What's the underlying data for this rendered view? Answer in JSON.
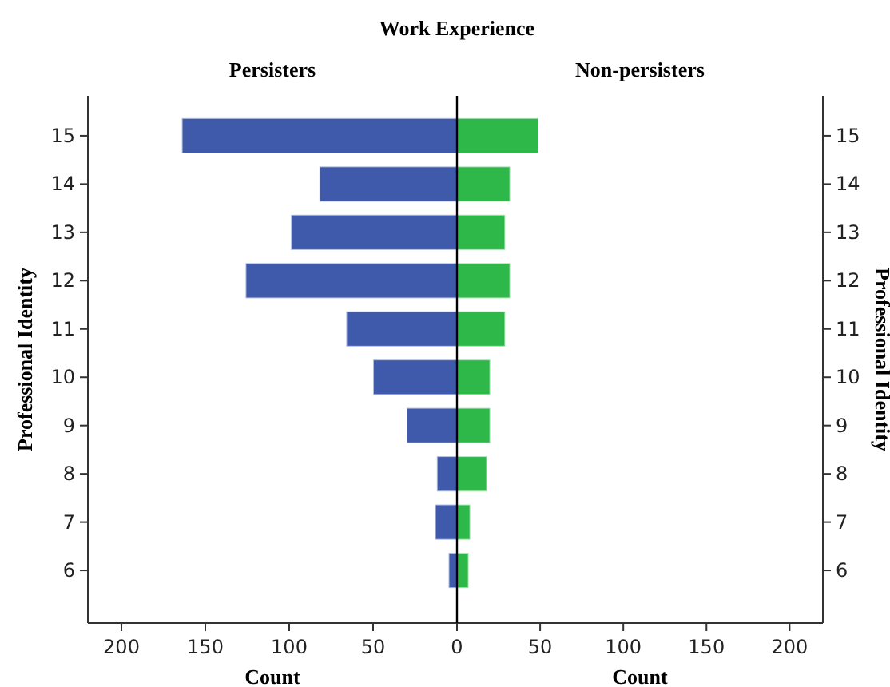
{
  "chart_data": [
    {
      "type": "bar",
      "orientation": "horizontal",
      "title": "Work Experience",
      "subtitle": "Persisters",
      "xlabel": "Count",
      "ylabel": "Professional Identity",
      "categories": [
        "15",
        "14",
        "13",
        "12",
        "11",
        "10",
        "9",
        "8",
        "7",
        "6"
      ],
      "values": [
        164,
        82,
        99,
        126,
        66,
        50,
        30,
        12,
        13,
        5
      ],
      "color": "#3f59ab",
      "xlim": [
        220,
        0
      ],
      "xticks": [
        200,
        150,
        100,
        50,
        0
      ]
    },
    {
      "type": "bar",
      "orientation": "horizontal",
      "subtitle": "Non-persisters",
      "xlabel": "Count",
      "ylabel": "Professional Identity",
      "categories": [
        "15",
        "14",
        "13",
        "12",
        "11",
        "10",
        "9",
        "8",
        "7",
        "6"
      ],
      "values": [
        49,
        32,
        29,
        32,
        29,
        20,
        20,
        18,
        8,
        7
      ],
      "color": "#2fb84a",
      "xlim": [
        0,
        220
      ],
      "xticks": [
        {
          "value": 0,
          "label": null
        },
        50,
        100,
        150,
        200
      ]
    }
  ]
}
